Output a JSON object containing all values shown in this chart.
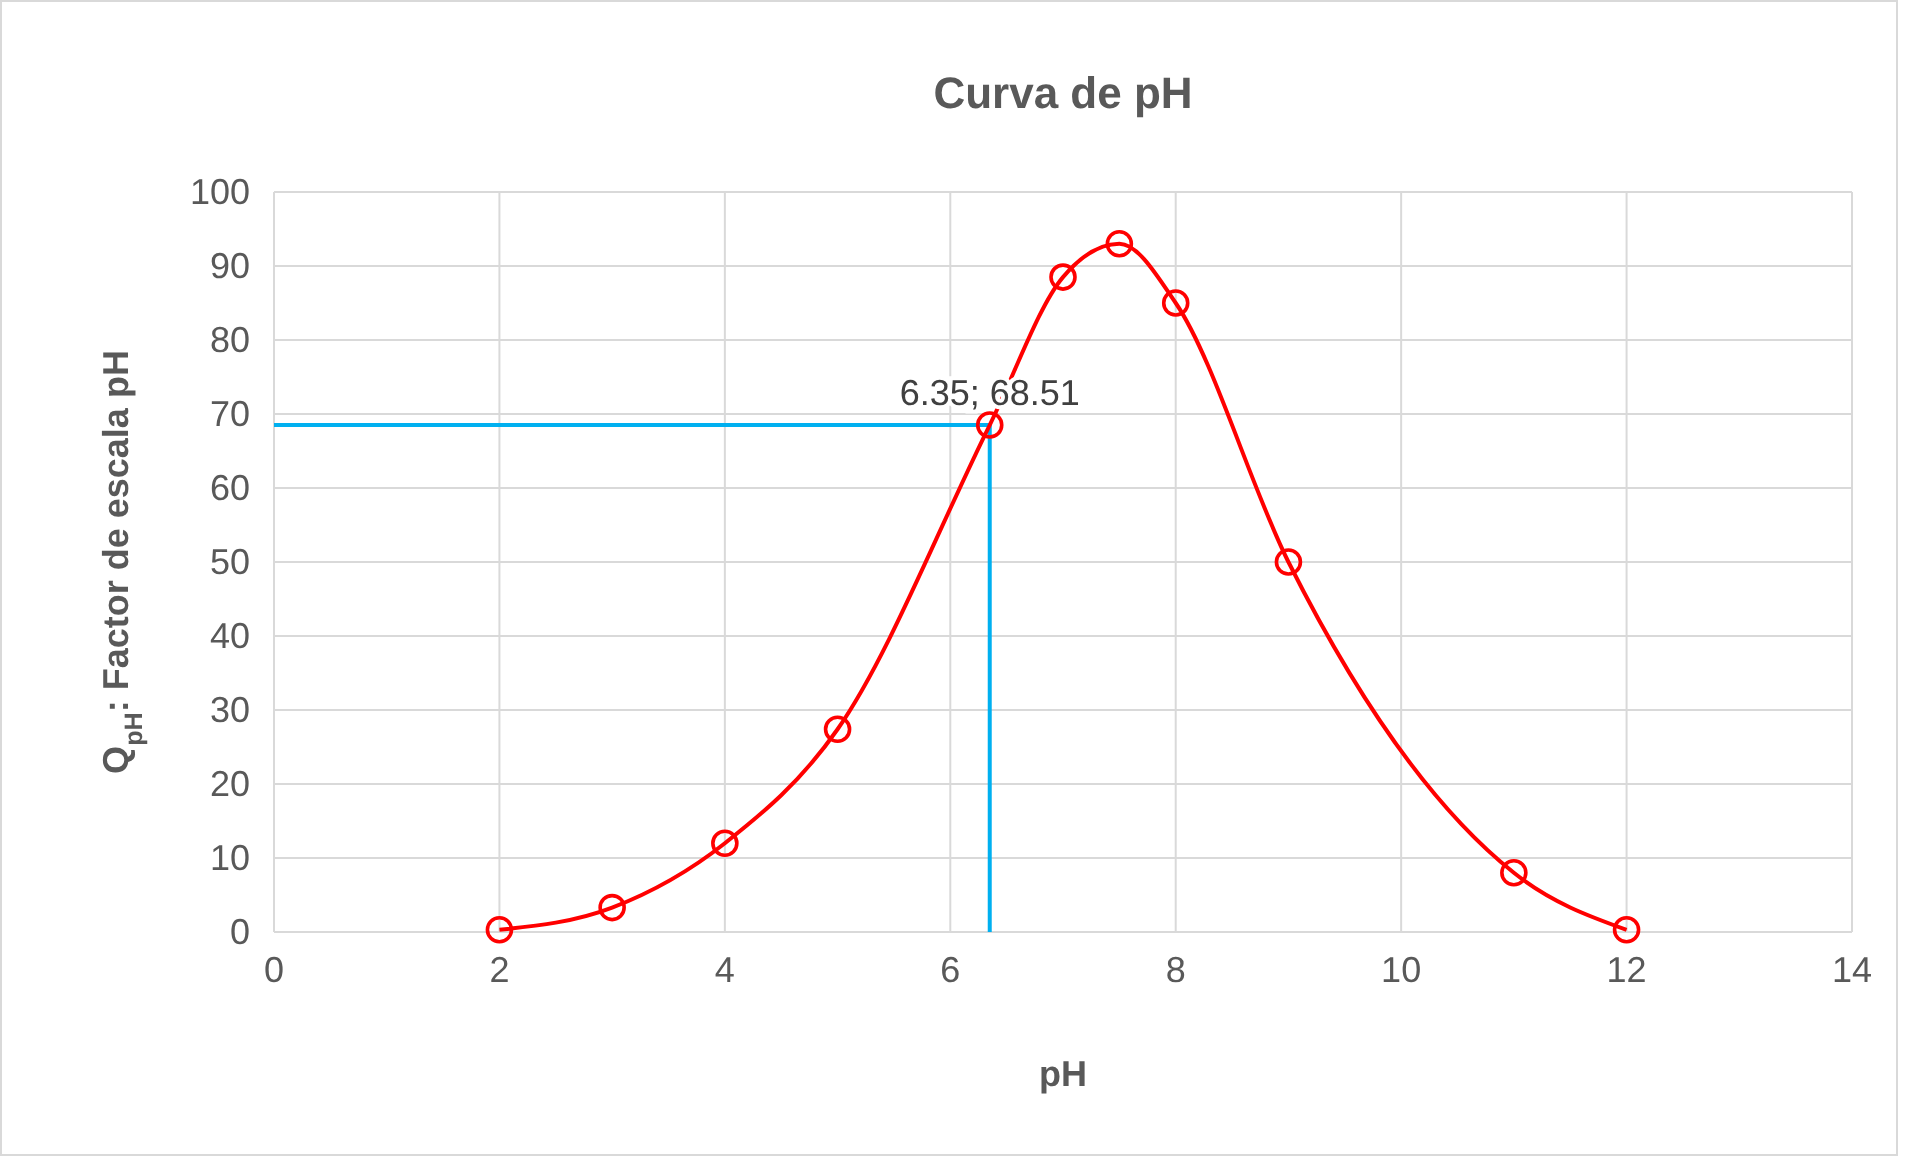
{
  "chart_data": {
    "type": "line",
    "title": "Curva de pH",
    "xlabel": "pH",
    "ylabel": "Q$_{pH}$: Factor de escala pH",
    "xlim": [
      0,
      14
    ],
    "xticks": [
      0,
      2,
      4,
      6,
      8,
      10,
      12,
      14
    ],
    "ylim": [
      0,
      100
    ],
    "yticks": [
      0,
      10,
      20,
      30,
      40,
      50,
      60,
      70,
      80,
      90,
      100
    ],
    "grid": true,
    "series": [
      {
        "color": "#00b0f0",
        "x": [
          0,
          6.35,
          6.35
        ],
        "values": [
          68.51,
          68.51,
          0
        ],
        "marker": "none",
        "line_style": "solid"
      },
      {
        "color": "#ff0000",
        "x": [
          2,
          3,
          4,
          5,
          6.35,
          7,
          7.5,
          8,
          9,
          11,
          12
        ],
        "values": [
          0.3,
          3.3,
          12,
          27.4,
          68.51,
          88.5,
          93,
          85,
          50,
          8,
          0.3
        ],
        "marker": "circle",
        "line_style": "solid"
      }
    ],
    "annotations": [
      {
        "text": "6.35; 68.51",
        "x": 6.35,
        "y": 68.51
      }
    ]
  }
}
